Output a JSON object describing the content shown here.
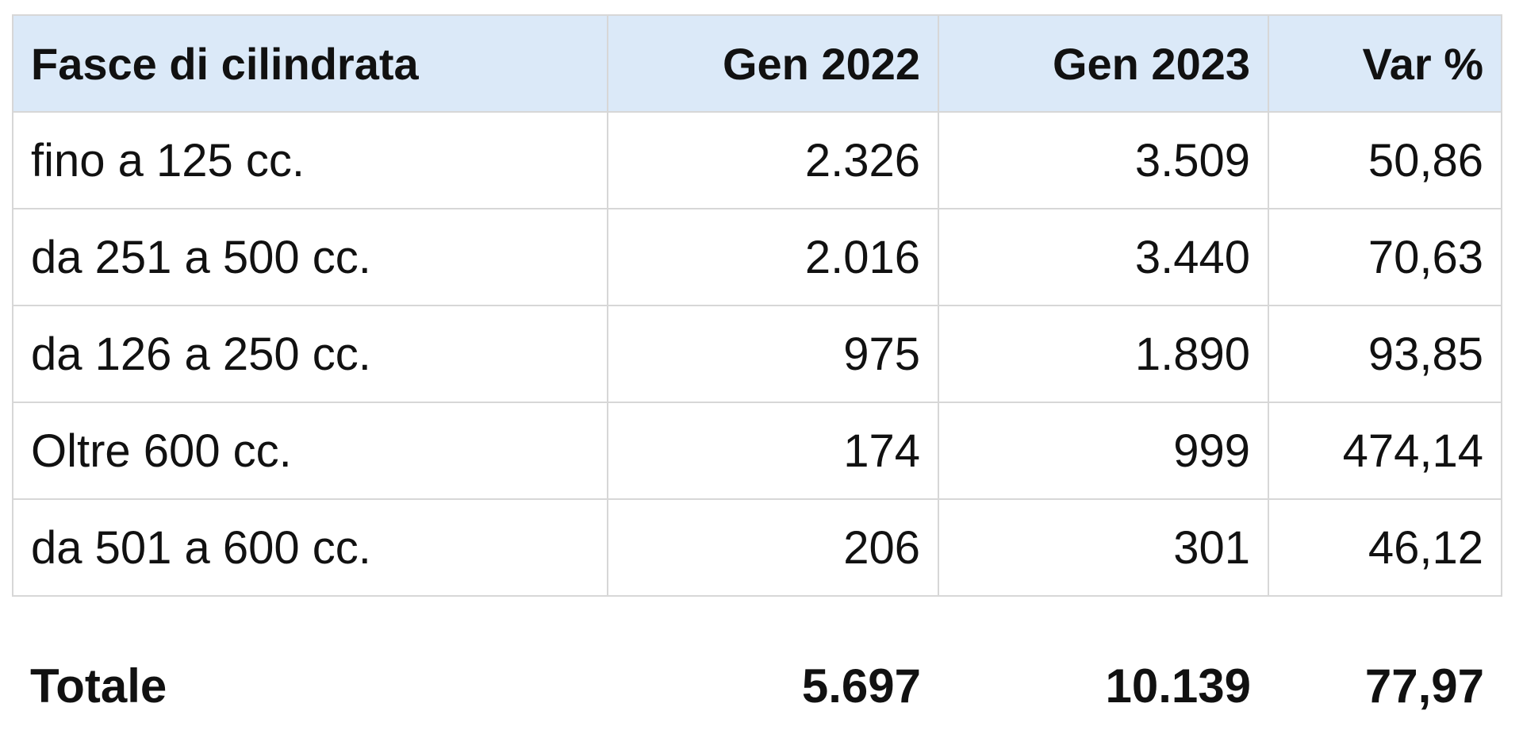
{
  "table": {
    "header": [
      "Fasce di cilindrata",
      "Gen 2022",
      "Gen 2023",
      "Var %"
    ],
    "rows": [
      [
        "fino a 125 cc.",
        "2.326",
        "3.509",
        "50,86"
      ],
      [
        "da 251 a 500 cc.",
        "2.016",
        "3.440",
        "70,63"
      ],
      [
        "da 126 a 250 cc.",
        "975",
        "1.890",
        "93,85"
      ],
      [
        "Oltre 600 cc.",
        "174",
        "999",
        "474,14"
      ],
      [
        "da 501 a 600 cc.",
        "206",
        "301",
        "46,12"
      ]
    ],
    "total": [
      "Totale",
      "5.697",
      "10.139",
      "77,97"
    ]
  }
}
